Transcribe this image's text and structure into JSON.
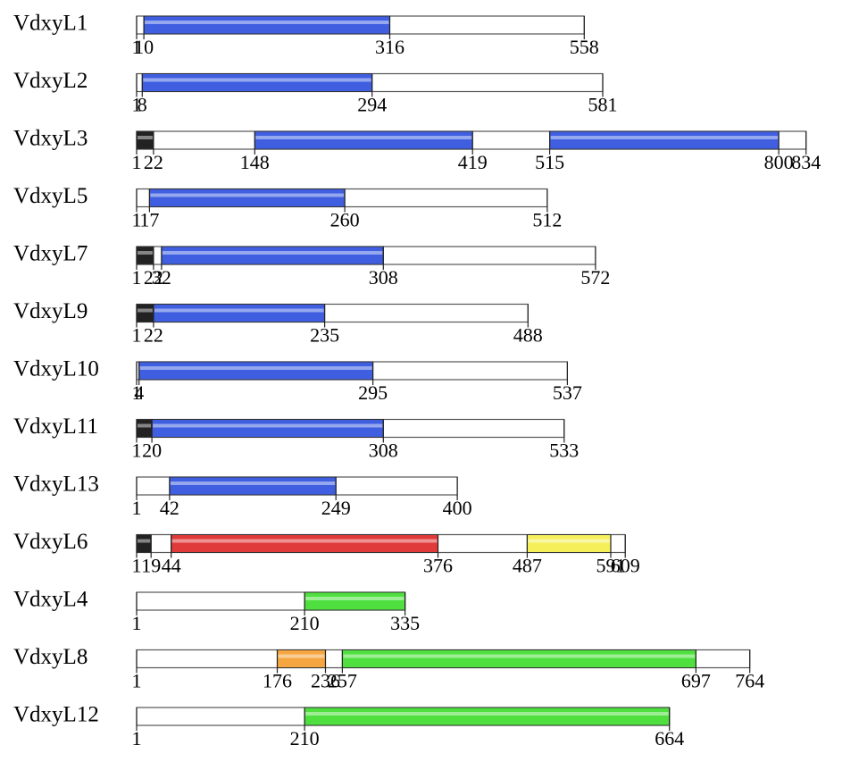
{
  "proteins": [
    {
      "name": "VdxyL1",
      "start": 1,
      "length": 558,
      "domains": [
        {
          "start": 10,
          "end": 316,
          "color": "#3f5fe0"
        }
      ]
    },
    {
      "name": "VdxyL2",
      "start": 1,
      "length": 581,
      "domains": [
        {
          "start": 8,
          "end": 294,
          "color": "#3f5fe0"
        }
      ]
    },
    {
      "name": "VdxyL3",
      "start": 1,
      "length": 834,
      "domains": [
        {
          "start": 1,
          "end": 22,
          "color": "#222222"
        },
        {
          "start": 148,
          "end": 419,
          "color": "#3f5fe0"
        },
        {
          "start": 515,
          "end": 800,
          "color": "#3f5fe0"
        }
      ]
    },
    {
      "name": "VdxyL5",
      "start": 1,
      "length": 512,
      "domains": [
        {
          "start": 17,
          "end": 260,
          "color": "#3f5fe0"
        }
      ]
    },
    {
      "name": "VdxyL7",
      "start": 1,
      "length": 572,
      "domains": [
        {
          "start": 1,
          "end": 22,
          "color": "#222222"
        },
        {
          "start": 32,
          "end": 308,
          "color": "#3f5fe0"
        }
      ]
    },
    {
      "name": "VdxyL9",
      "start": 1,
      "length": 488,
      "domains": [
        {
          "start": 1,
          "end": 22,
          "color": "#222222"
        },
        {
          "start": 22,
          "end": 235,
          "color": "#3f5fe0"
        }
      ]
    },
    {
      "name": "VdxyL10",
      "start": 1,
      "length": 537,
      "domains": [
        {
          "start": 4,
          "end": 295,
          "color": "#3f5fe0"
        }
      ]
    },
    {
      "name": "VdxyL11",
      "start": 1,
      "length": 533,
      "domains": [
        {
          "start": 1,
          "end": 20,
          "color": "#222222"
        },
        {
          "start": 20,
          "end": 308,
          "color": "#3f5fe0"
        }
      ]
    },
    {
      "name": "VdxyL13",
      "start": 1,
      "length": 400,
      "domains": [
        {
          "start": 42,
          "end": 249,
          "color": "#3f5fe0"
        }
      ]
    },
    {
      "name": "VdxyL6",
      "start": 1,
      "length": 609,
      "domains": [
        {
          "start": 1,
          "end": 19,
          "color": "#222222"
        },
        {
          "start": 44,
          "end": 376,
          "color": "#e03a3a"
        },
        {
          "start": 487,
          "end": 591,
          "color": "#f5f05a"
        }
      ]
    },
    {
      "name": "VdxyL4",
      "start": 1,
      "length": 335,
      "domains": [
        {
          "start": 210,
          "end": 335,
          "color": "#4fe040"
        }
      ]
    },
    {
      "name": "VdxyL8",
      "start": 1,
      "length": 764,
      "domains": [
        {
          "start": 176,
          "end": 236,
          "color": "#f5a640"
        },
        {
          "start": 257,
          "end": 697,
          "color": "#4fe040"
        }
      ]
    },
    {
      "name": "VdxyL12",
      "start": 1,
      "length": 664,
      "domains": [
        {
          "start": 210,
          "end": 664,
          "color": "#4fe040"
        }
      ]
    }
  ]
}
